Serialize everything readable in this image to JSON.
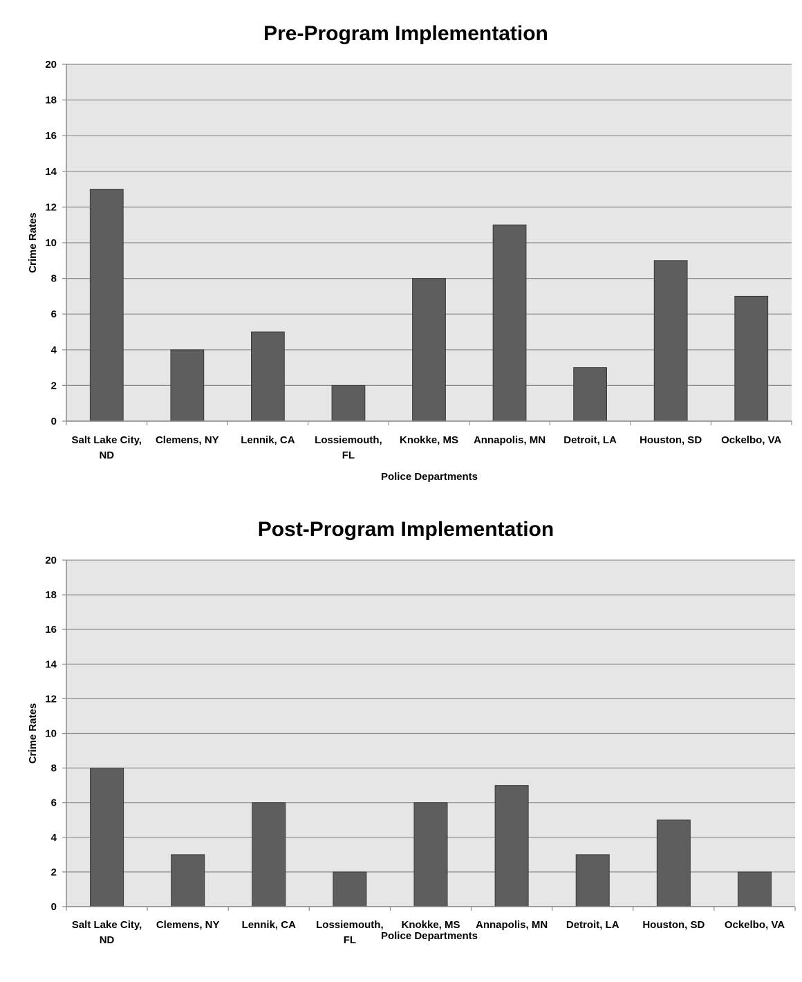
{
  "chart_data": [
    {
      "type": "bar",
      "title": "Pre-Program Implementation",
      "xlabel": "Police Departments",
      "ylabel": "Crime Rates",
      "ylim": [
        0,
        20
      ],
      "yticks": [
        0,
        2,
        4,
        6,
        8,
        10,
        12,
        14,
        16,
        18,
        20
      ],
      "grid": true,
      "categories": [
        [
          "Salt Lake City,",
          "ND"
        ],
        [
          "Clemens, NY"
        ],
        [
          "Lennik, CA"
        ],
        [
          "Lossiemouth,",
          "FL"
        ],
        [
          "Knokke, MS"
        ],
        [
          "Annapolis, MN"
        ],
        [
          "Detroit, LA"
        ],
        [
          "Houston, SD"
        ],
        [
          "Ockelbo, VA"
        ]
      ],
      "values": [
        13,
        4,
        5,
        2,
        8,
        11,
        3,
        9,
        7
      ],
      "colors": {
        "bar": "#5e5e5e",
        "bar_edge": "#3a3a3a",
        "plot_bg": "#e6e6e6",
        "grid": "#8c8c8c"
      }
    },
    {
      "type": "bar",
      "title": "Post-Program Implementation",
      "xlabel": "Police Departments",
      "ylabel": "Crime Rates",
      "ylim": [
        0,
        20
      ],
      "yticks": [
        0,
        2,
        4,
        6,
        8,
        10,
        12,
        14,
        16,
        18,
        20
      ],
      "grid": true,
      "categories": [
        [
          "Salt Lake City,",
          "ND"
        ],
        [
          "Clemens, NY"
        ],
        [
          "Lennik, CA"
        ],
        [
          "Lossiemouth,",
          "FL"
        ],
        [
          "Knokke, MS"
        ],
        [
          "Annapolis, MN"
        ],
        [
          "Detroit, LA"
        ],
        [
          "Houston, SD"
        ],
        [
          "Ockelbo, VA"
        ]
      ],
      "values": [
        8,
        3,
        6,
        2,
        6,
        7,
        3,
        5,
        2
      ],
      "colors": {
        "bar": "#5e5e5e",
        "bar_edge": "#3a3a3a",
        "plot_bg": "#e6e6e6",
        "grid": "#8c8c8c"
      }
    }
  ]
}
